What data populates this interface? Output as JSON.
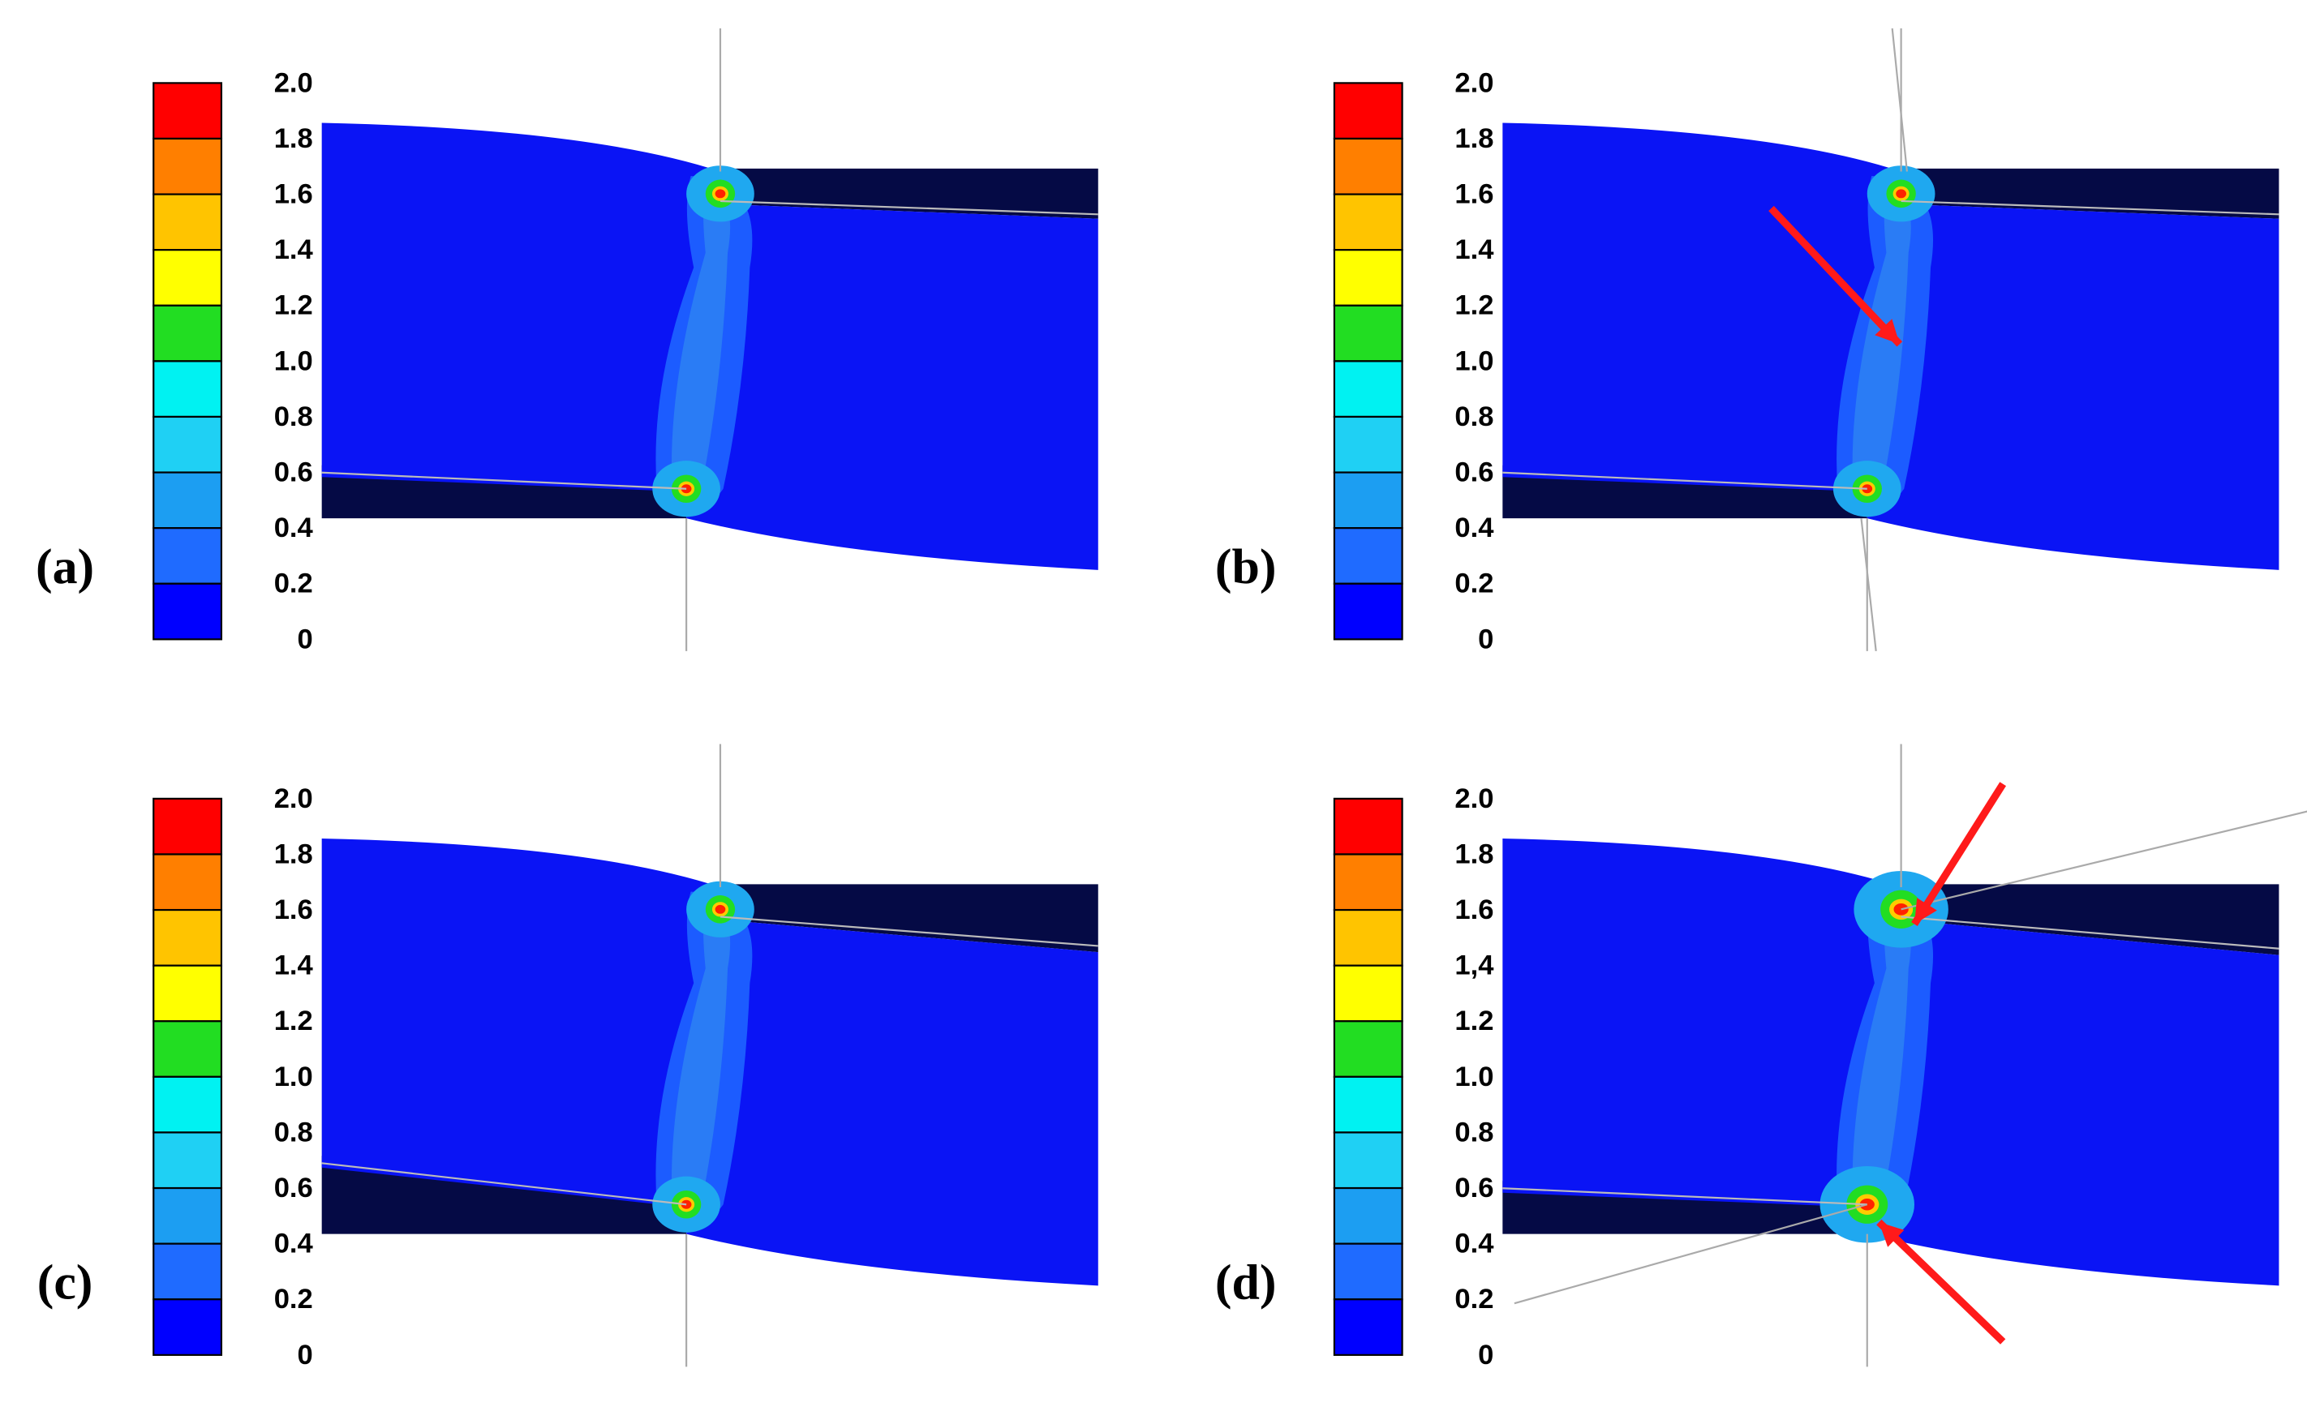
{
  "panels": [
    {
      "label": "(a)",
      "scale": [
        "2.0",
        "1.8",
        "1.6",
        "1.4",
        "1.2",
        "1.0",
        "0.8",
        "0.6",
        "0.4",
        "0.2",
        "0"
      ]
    },
    {
      "label": "(b)",
      "scale": [
        "2.0",
        "1.8",
        "1.6",
        "1.4",
        "1.2",
        "1.0",
        "0.8",
        "0.6",
        "0.4",
        "0.2",
        "0"
      ]
    },
    {
      "label": "(c)",
      "scale": [
        "2.0",
        "1.8",
        "1.6",
        "1.4",
        "1.2",
        "1.0",
        "0.8",
        "0.6",
        "0.4",
        "0.2",
        "0"
      ]
    },
    {
      "label": "(d)",
      "scale": [
        "2.0",
        "1.8",
        "1.6",
        "1,4",
        "1.2",
        "1.0",
        "0.8",
        "0.6",
        "0.4",
        "0.2",
        "0"
      ]
    }
  ]
}
